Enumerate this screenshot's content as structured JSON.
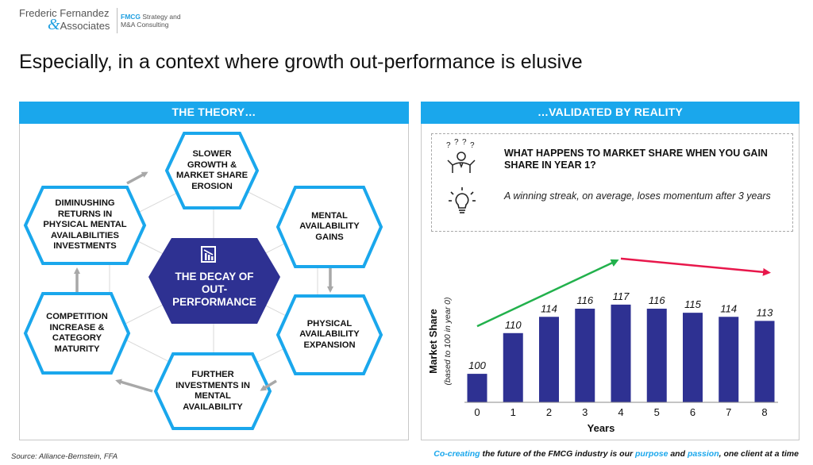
{
  "logo": {
    "line1": "Frederic Fernandez",
    "amp": "&",
    "line2": "Associates",
    "tag_strong": "FMCG",
    "tag_rest": " Strategy and",
    "tag_line2": "M&A Consulting"
  },
  "headline": "Especially, in a context where growth out-performance is elusive",
  "left_panel": {
    "header": "THE THEORY…",
    "center_label": "THE DECAY OF\nOUT-\nPERFORMANCE",
    "center_icon": "chart-decline-icon",
    "hexagons": [
      "SLOWER\nGROWTH &\nMARKET SHARE\nEROSION",
      "MENTAL\nAVAILABILITY\nGAINS",
      "PHYSICAL\nAVAILABILITY\nEXPANSION",
      "FURTHER\nINVESTMENTS IN\nMENTAL\nAVAILABILITY",
      "COMPETITION\nINCREASE &\nCATEGORY\nMATURITY",
      "DIMINUSHING\nRETURNS IN\nPHYSICAL MENTAL\nAVAILABILITIES\nINVESTMENTS"
    ]
  },
  "right_panel": {
    "header": "…VALIDATED BY REALITY",
    "question": "WHAT HAPPENS TO MARKET SHARE WHEN YOU GAIN SHARE IN YEAR 1?",
    "question_icon": "confused-person-icon",
    "answer": "A winning streak, on average, loses momentum after 3 years",
    "answer_icon": "lightbulb-icon"
  },
  "chart_data": {
    "type": "bar",
    "categories": [
      "0",
      "1",
      "2",
      "3",
      "4",
      "5",
      "6",
      "7",
      "8"
    ],
    "values": [
      100,
      110,
      114,
      116,
      117,
      116,
      115,
      114,
      113
    ],
    "xlabel": "Years",
    "ylabel": "Market Share",
    "ylabel_sub": "(based to 100 in year 0)",
    "bar_color": "#2e3192",
    "trend_up_color": "#22b14c",
    "trend_down_color": "#e8174b"
  },
  "footer": {
    "source": "Source: Alliance-Bernstein, FFA",
    "tagline": [
      {
        "text": "Co-creating",
        "hl": true
      },
      {
        "text": " the future of the FMCG industry is our ",
        "hl": false
      },
      {
        "text": "purpose",
        "hl": true
      },
      {
        "text": " and ",
        "hl": false
      },
      {
        "text": "passion",
        "hl": true
      },
      {
        "text": ", one client at a time",
        "hl": false
      }
    ]
  }
}
